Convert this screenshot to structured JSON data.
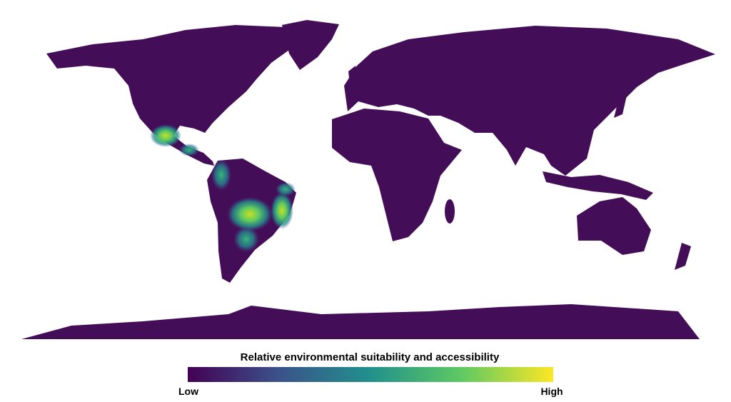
{
  "legend": {
    "title": "Relative environmental suitability and accessibility",
    "low_label": "Low",
    "high_label": "High"
  }
}
